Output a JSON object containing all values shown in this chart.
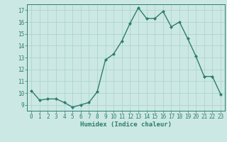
{
  "x": [
    0,
    1,
    2,
    3,
    4,
    5,
    6,
    7,
    8,
    9,
    10,
    11,
    12,
    13,
    14,
    15,
    16,
    17,
    18,
    19,
    20,
    21,
    22,
    23
  ],
  "y": [
    10.2,
    9.4,
    9.5,
    9.5,
    9.2,
    8.8,
    9.0,
    9.2,
    10.1,
    12.8,
    13.3,
    14.4,
    15.9,
    17.2,
    16.3,
    16.3,
    16.9,
    15.6,
    16.0,
    14.6,
    13.1,
    11.4,
    11.4,
    9.9
  ],
  "xlabel": "Humidex (Indice chaleur)",
  "ylim": [
    8.5,
    17.5
  ],
  "xlim": [
    -0.5,
    23.5
  ],
  "yticks": [
    9,
    10,
    11,
    12,
    13,
    14,
    15,
    16,
    17
  ],
  "xticks": [
    0,
    1,
    2,
    3,
    4,
    5,
    6,
    7,
    8,
    9,
    10,
    11,
    12,
    13,
    14,
    15,
    16,
    17,
    18,
    19,
    20,
    21,
    22,
    23
  ],
  "line_color": "#2d7d6e",
  "marker_color": "#2d7d6e",
  "bg_color": "#cce8e4",
  "grid_color": "#aed4cf",
  "text_color": "#2d7d6e"
}
